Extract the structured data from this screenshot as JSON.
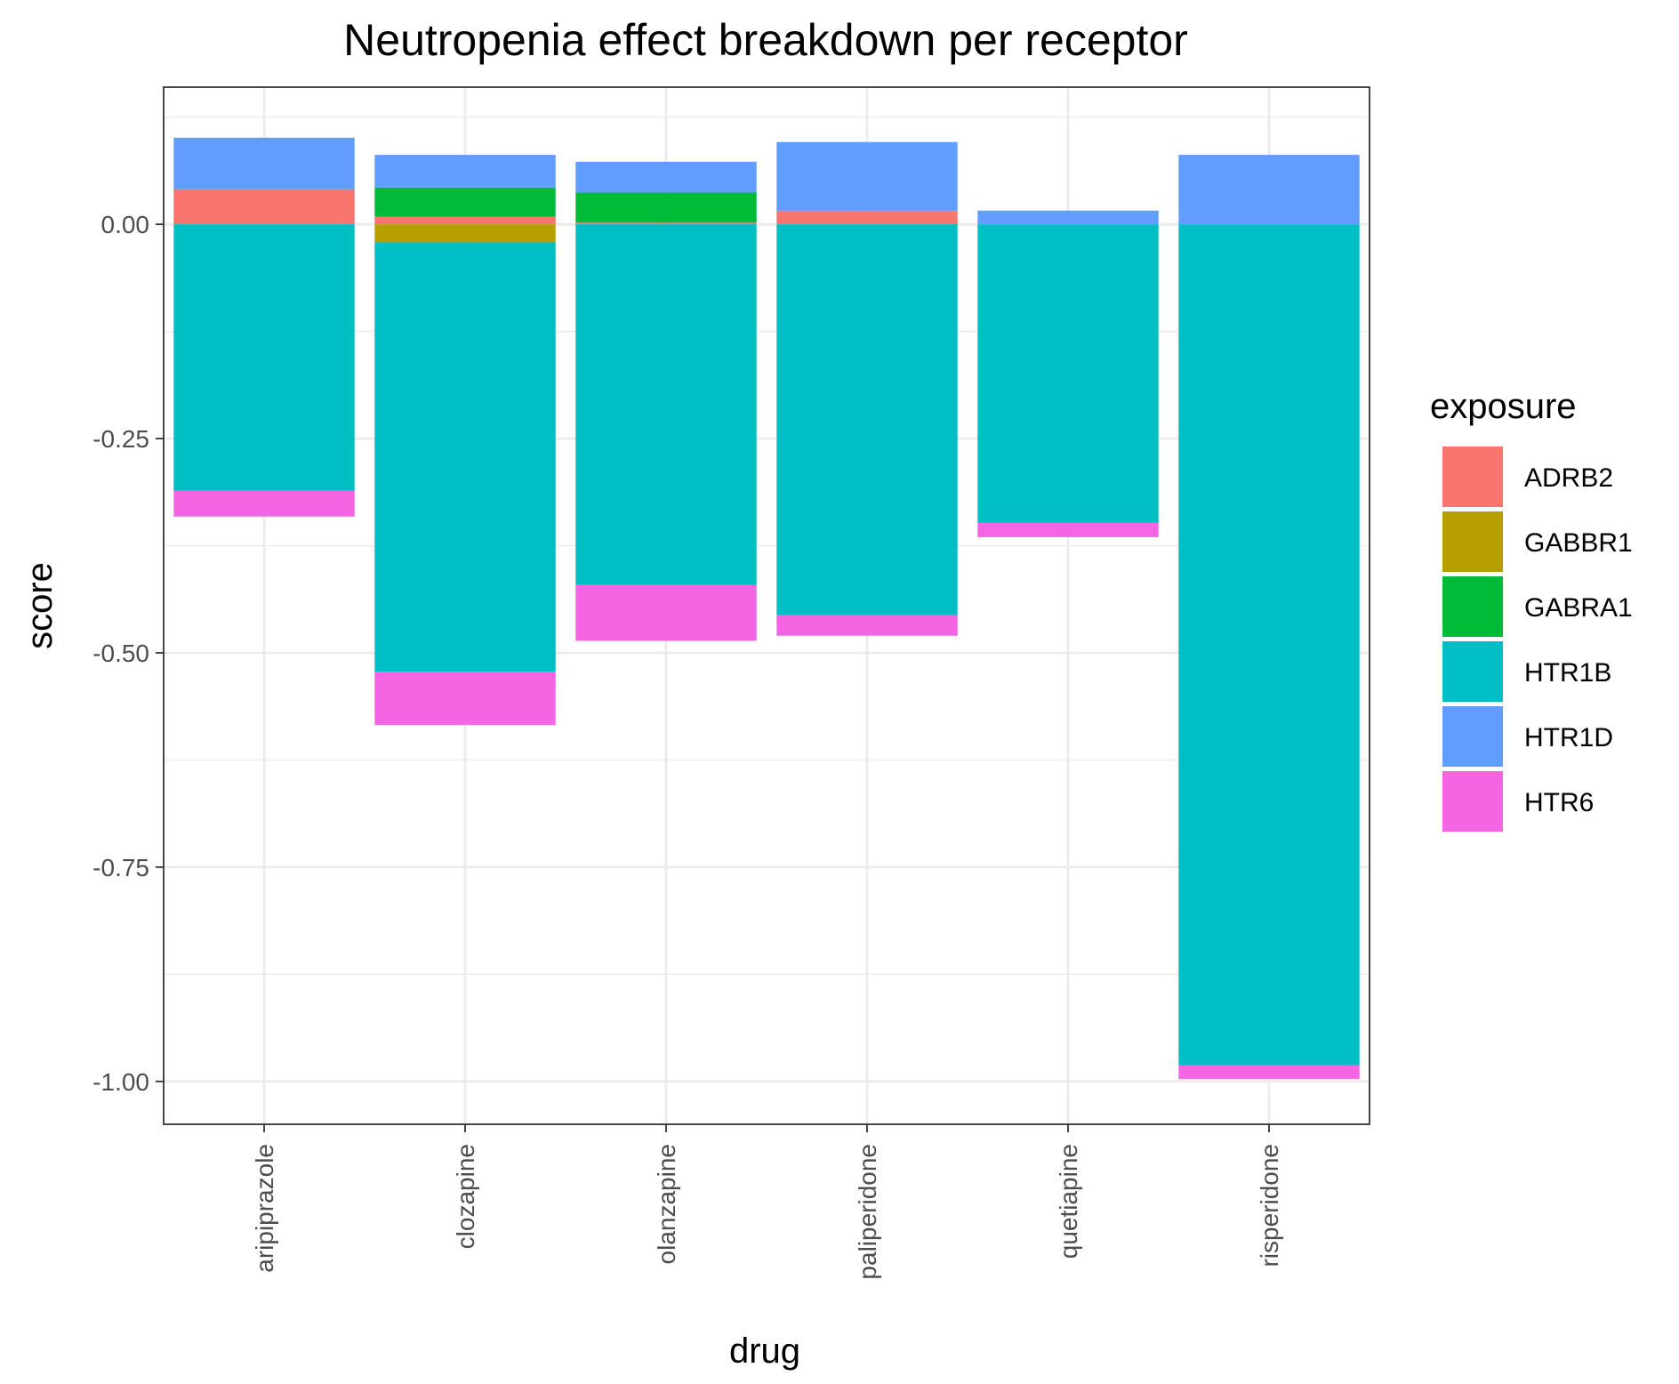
{
  "chart_data": {
    "type": "bar",
    "stacked": true,
    "title": "Neutropenia effect breakdown per receptor",
    "xlabel": "drug",
    "ylabel": "score",
    "categories": [
      "aripiprazole",
      "clozapine",
      "olanzapine",
      "paliperidone",
      "quetiapine",
      "risperidone"
    ],
    "ylim": [
      -1.05,
      0.16
    ],
    "yticks": [
      0.0,
      -0.25,
      -0.5,
      -0.75,
      -1.0
    ],
    "ytick_labels": [
      "0.00",
      "-0.25",
      "-0.50",
      "-0.75",
      "-1.00"
    ],
    "grid": true,
    "legend": {
      "title": "exposure",
      "position": "right"
    },
    "series": [
      {
        "name": "ADRB2",
        "color": "#F8766D",
        "values": [
          0.041,
          0.009,
          0.002,
          0.016,
          0.0,
          0.0
        ]
      },
      {
        "name": "GABBR1",
        "color": "#B79F00",
        "values": [
          0.0,
          -0.021,
          0.0,
          0.0,
          0.0,
          0.0
        ]
      },
      {
        "name": "GABRA1",
        "color": "#00BA38",
        "values": [
          0.0,
          0.034,
          0.035,
          0.0,
          0.0,
          0.0
        ]
      },
      {
        "name": "HTR1B",
        "color": "#00BFC4",
        "values": [
          -0.311,
          -0.501,
          -0.421,
          -0.456,
          -0.348,
          -0.981
        ]
      },
      {
        "name": "HTR1D",
        "color": "#619CFF",
        "values": [
          0.06,
          0.038,
          0.036,
          0.08,
          0.016,
          0.081
        ]
      },
      {
        "name": "HTR6",
        "color": "#F564E3",
        "values": [
          -0.03,
          -0.062,
          -0.065,
          -0.024,
          -0.017,
          -0.016
        ]
      }
    ]
  }
}
